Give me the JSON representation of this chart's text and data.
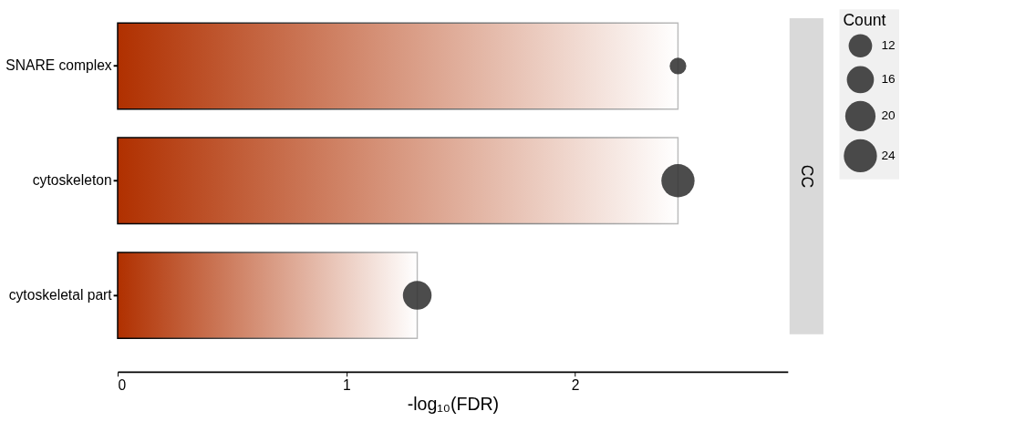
{
  "chart_data": {
    "type": "bar",
    "orientation": "horizontal",
    "xlabel": "-log₁₀(FDR)",
    "legend_title": "Count",
    "categories": [
      "SNARE complex",
      "cytoskeleton",
      "cytoskeletal part"
    ],
    "series": [
      {
        "color": "#b03000",
        "values": [
          2.45,
          2.45,
          1.31
        ]
      },
      {
        "type": "bubble",
        "color": "#333333",
        "values": [
          2.45,
          2.45,
          1.31
        ],
        "sizes": [
          6,
          24,
          18
        ]
      }
    ],
    "size_legend": [
      12,
      16,
      20,
      24
    ],
    "xlim": [
      0,
      2.93
    ],
    "xticks": [
      0,
      1,
      2
    ],
    "grid": false,
    "annotations": [
      "CC"
    ]
  }
}
